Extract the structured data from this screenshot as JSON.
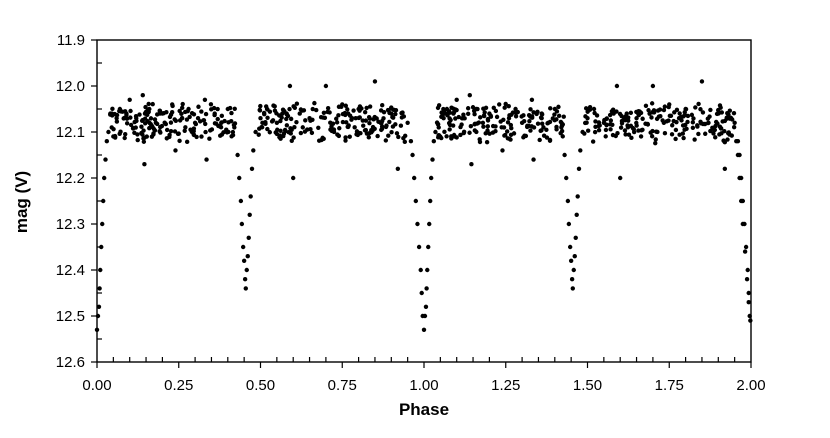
{
  "chart_data": {
    "type": "scatter",
    "title": "",
    "xlabel": "Phase",
    "ylabel": "mag (V)",
    "xlim": [
      0.0,
      2.0
    ],
    "ylim": [
      11.9,
      12.6
    ],
    "y_inverted": true,
    "x_ticks": [
      "0.00",
      "0.25",
      "0.50",
      "0.75",
      "1.00",
      "1.25",
      "1.50",
      "1.75",
      "2.00"
    ],
    "y_ticks": [
      "11.9",
      "12.0",
      "12.1",
      "12.2",
      "12.3",
      "12.4",
      "12.5",
      "12.6"
    ],
    "grid": false,
    "legend": "none",
    "marker_color": "#000000",
    "primary_eclipse": {
      "phase": 0.0,
      "min_mag": 12.53
    },
    "secondary_eclipse": {
      "phase": 0.46,
      "min_mag": 12.44
    },
    "out_of_eclipse_mag": 12.08,
    "series": [
      {
        "values": [
          [
            0.0,
            12.53
          ],
          [
            0.003,
            12.5
          ],
          [
            0.006,
            12.48
          ],
          [
            0.008,
            12.44
          ],
          [
            0.01,
            12.4
          ],
          [
            0.013,
            12.35
          ],
          [
            0.016,
            12.3
          ],
          [
            0.019,
            12.25
          ],
          [
            0.022,
            12.2
          ],
          [
            0.026,
            12.16
          ],
          [
            0.03,
            12.12
          ],
          [
            0.035,
            12.1
          ],
          [
            0.045,
            12.09
          ],
          [
            0.06,
            12.07
          ],
          [
            0.07,
            12.05
          ],
          [
            0.09,
            12.06
          ],
          [
            0.1,
            12.03
          ],
          [
            0.12,
            12.07
          ],
          [
            0.14,
            12.02
          ],
          [
            0.145,
            12.17
          ],
          [
            0.16,
            12.05
          ],
          [
            0.18,
            12.08
          ],
          [
            0.2,
            12.06
          ],
          [
            0.23,
            12.04
          ],
          [
            0.24,
            12.14
          ],
          [
            0.26,
            12.07
          ],
          [
            0.28,
            12.05
          ],
          [
            0.3,
            12.08
          ],
          [
            0.33,
            12.03
          ],
          [
            0.335,
            12.16
          ],
          [
            0.36,
            12.06
          ],
          [
            0.38,
            12.08
          ],
          [
            0.4,
            12.05
          ],
          [
            0.42,
            12.09
          ],
          [
            0.43,
            12.15
          ],
          [
            0.435,
            12.2
          ],
          [
            0.44,
            12.25
          ],
          [
            0.443,
            12.3
          ],
          [
            0.447,
            12.35
          ],
          [
            0.45,
            12.38
          ],
          [
            0.453,
            12.42
          ],
          [
            0.455,
            12.44
          ],
          [
            0.458,
            12.4
          ],
          [
            0.461,
            12.37
          ],
          [
            0.464,
            12.33
          ],
          [
            0.467,
            12.28
          ],
          [
            0.47,
            12.24
          ],
          [
            0.474,
            12.18
          ],
          [
            0.478,
            12.14
          ],
          [
            0.485,
            12.1
          ],
          [
            0.5,
            12.07
          ],
          [
            0.52,
            12.05
          ],
          [
            0.55,
            12.08
          ],
          [
            0.58,
            12.06
          ],
          [
            0.59,
            12.0
          ],
          [
            0.6,
            12.2
          ],
          [
            0.62,
            12.06
          ],
          [
            0.65,
            12.07
          ],
          [
            0.7,
            12.0
          ],
          [
            0.75,
            12.04
          ],
          [
            0.78,
            12.07
          ],
          [
            0.8,
            12.05
          ],
          [
            0.85,
            11.99
          ],
          [
            0.87,
            12.08
          ],
          [
            0.9,
            12.06
          ],
          [
            0.92,
            12.18
          ],
          [
            0.95,
            12.08
          ],
          [
            0.96,
            12.12
          ],
          [
            0.965,
            12.15
          ],
          [
            0.97,
            12.2
          ],
          [
            0.975,
            12.25
          ],
          [
            0.98,
            12.3
          ],
          [
            0.985,
            12.35
          ],
          [
            0.99,
            12.4
          ],
          [
            0.993,
            12.45
          ],
          [
            0.996,
            12.5
          ],
          [
            1.0,
            12.53
          ]
        ]
      }
    ]
  }
}
